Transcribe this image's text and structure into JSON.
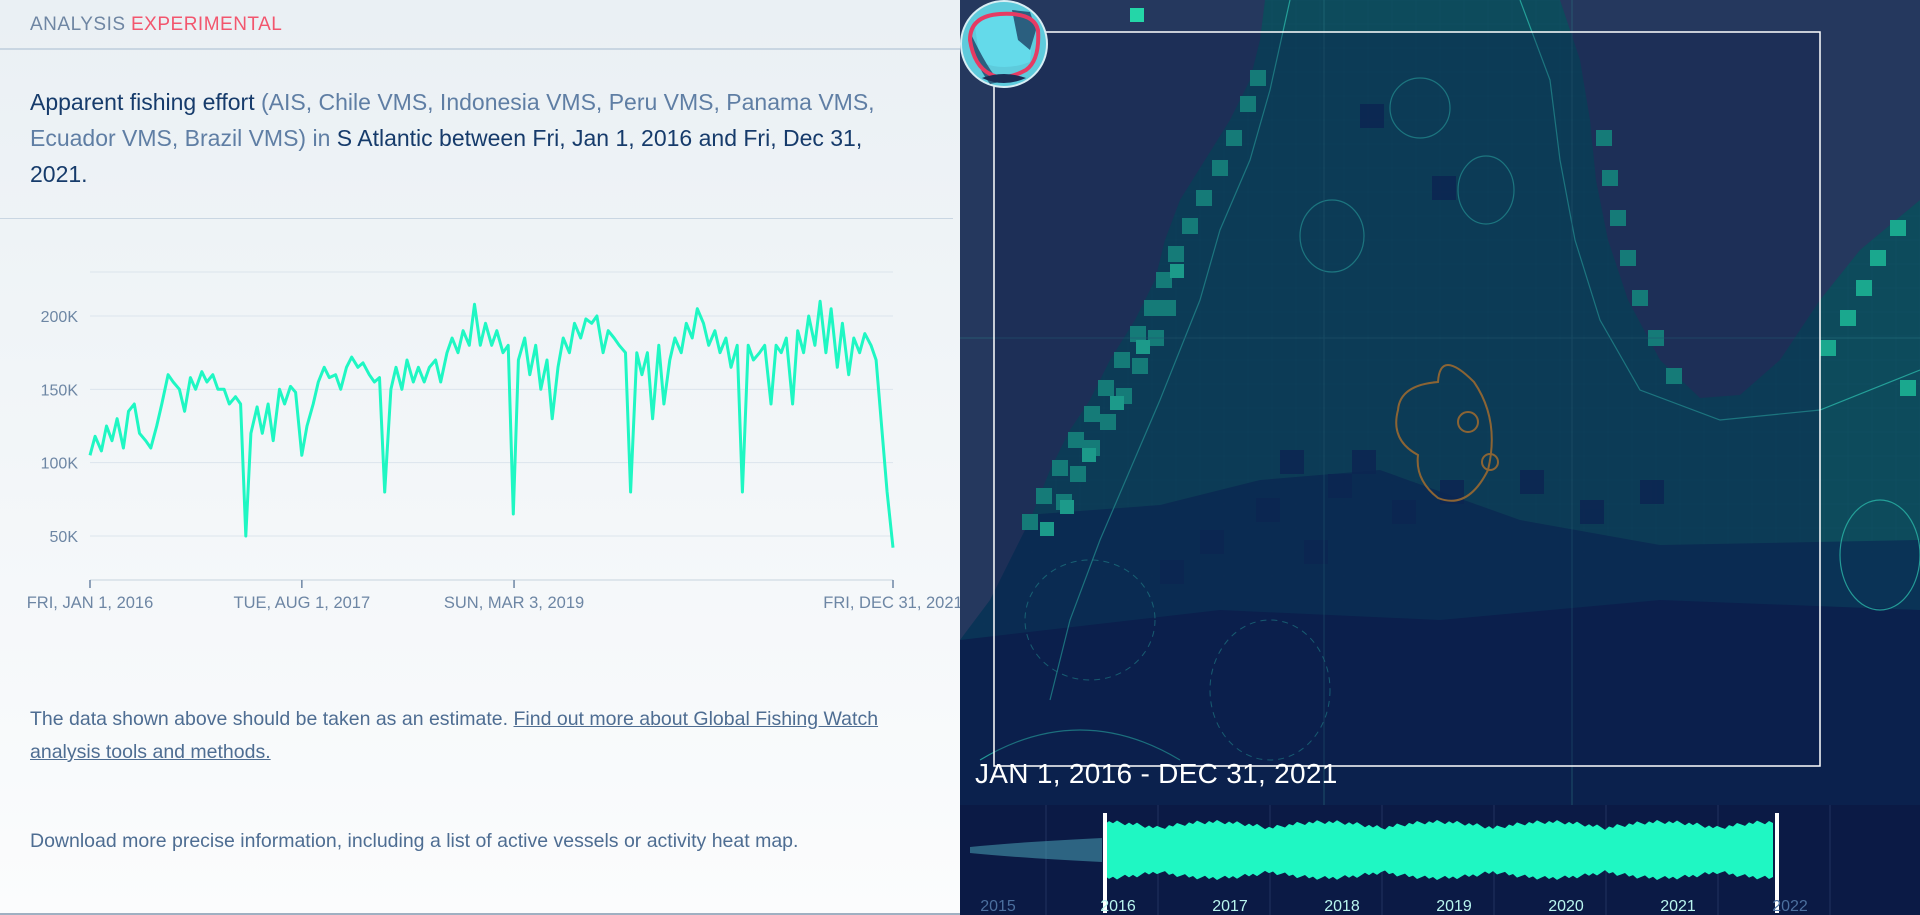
{
  "header": {
    "analysis_label": "ANALYSIS",
    "experimental_label": "EXPERIMENTAL"
  },
  "summary": {
    "metric": "Apparent fishing effort",
    "sources": "(AIS, Chile VMS, Indonesia VMS, Peru VMS, Panama VMS, Ecuador VMS, Brazil VMS)",
    "in_word": "in",
    "area_and_dates": "S Atlantic between Fri, Jan 1, 2016 and Fri, Dec 31, 2021."
  },
  "chart_data": {
    "type": "line",
    "title": "",
    "xlabel": "",
    "ylabel": "",
    "x_tick_labels": [
      "FRI, JAN 1, 2016",
      "TUE, AUG 1, 2017",
      "SUN, MAR 3, 2019",
      "FRI, DEC 31, 2021"
    ],
    "y_tick_labels": [
      "50K",
      "100K",
      "150K",
      "200K"
    ],
    "ylim": [
      20000,
      230000
    ],
    "x_range": [
      "2016-01-01",
      "2021-12-31"
    ],
    "grid": true,
    "series": [
      {
        "name": "",
        "color": "#1ff7c3",
        "points": [
          [
            "2016-01-01",
            105000
          ],
          [
            "2016-01-15",
            118000
          ],
          [
            "2016-02-01",
            108000
          ],
          [
            "2016-02-15",
            125000
          ],
          [
            "2016-03-01",
            115000
          ],
          [
            "2016-03-15",
            130000
          ],
          [
            "2016-04-01",
            110000
          ],
          [
            "2016-04-15",
            135000
          ],
          [
            "2016-05-01",
            140000
          ],
          [
            "2016-05-15",
            120000
          ],
          [
            "2016-06-01",
            115000
          ],
          [
            "2016-06-15",
            110000
          ],
          [
            "2016-07-01",
            125000
          ],
          [
            "2016-07-15",
            140000
          ],
          [
            "2016-08-01",
            160000
          ],
          [
            "2016-08-15",
            155000
          ],
          [
            "2016-09-01",
            150000
          ],
          [
            "2016-09-15",
            135000
          ],
          [
            "2016-10-01",
            158000
          ],
          [
            "2016-10-15",
            150000
          ],
          [
            "2016-11-01",
            162000
          ],
          [
            "2016-11-15",
            155000
          ],
          [
            "2016-12-01",
            160000
          ],
          [
            "2016-12-15",
            150000
          ],
          [
            "2017-01-01",
            150000
          ],
          [
            "2017-01-15",
            140000
          ],
          [
            "2017-02-01",
            145000
          ],
          [
            "2017-02-15",
            140000
          ],
          [
            "2017-03-01",
            50000
          ],
          [
            "2017-03-15",
            120000
          ],
          [
            "2017-04-01",
            138000
          ],
          [
            "2017-04-15",
            120000
          ],
          [
            "2017-05-01",
            140000
          ],
          [
            "2017-05-15",
            115000
          ],
          [
            "2017-06-01",
            150000
          ],
          [
            "2017-06-15",
            140000
          ],
          [
            "2017-07-01",
            152000
          ],
          [
            "2017-07-15",
            148000
          ],
          [
            "2017-08-01",
            105000
          ],
          [
            "2017-08-15",
            125000
          ],
          [
            "2017-09-01",
            140000
          ],
          [
            "2017-09-15",
            155000
          ],
          [
            "2017-10-01",
            165000
          ],
          [
            "2017-10-15",
            158000
          ],
          [
            "2017-11-01",
            160000
          ],
          [
            "2017-11-15",
            150000
          ],
          [
            "2017-12-01",
            165000
          ],
          [
            "2017-12-15",
            172000
          ],
          [
            "2018-01-01",
            165000
          ],
          [
            "2018-01-15",
            168000
          ],
          [
            "2018-02-01",
            160000
          ],
          [
            "2018-02-15",
            155000
          ],
          [
            "2018-03-01",
            158000
          ],
          [
            "2018-03-15",
            80000
          ],
          [
            "2018-04-01",
            150000
          ],
          [
            "2018-04-15",
            165000
          ],
          [
            "2018-05-01",
            150000
          ],
          [
            "2018-05-15",
            170000
          ],
          [
            "2018-06-01",
            155000
          ],
          [
            "2018-06-15",
            165000
          ],
          [
            "2018-07-01",
            155000
          ],
          [
            "2018-07-15",
            165000
          ],
          [
            "2018-08-01",
            170000
          ],
          [
            "2018-08-15",
            155000
          ],
          [
            "2018-09-01",
            175000
          ],
          [
            "2018-09-15",
            185000
          ],
          [
            "2018-10-01",
            175000
          ],
          [
            "2018-10-15",
            190000
          ],
          [
            "2018-11-01",
            180000
          ],
          [
            "2018-11-15",
            208000
          ],
          [
            "2018-12-01",
            180000
          ],
          [
            "2018-12-15",
            195000
          ],
          [
            "2019-01-01",
            180000
          ],
          [
            "2019-01-15",
            190000
          ],
          [
            "2019-02-01",
            175000
          ],
          [
            "2019-02-15",
            180000
          ],
          [
            "2019-03-01",
            65000
          ],
          [
            "2019-03-15",
            170000
          ],
          [
            "2019-04-01",
            185000
          ],
          [
            "2019-04-15",
            160000
          ],
          [
            "2019-05-01",
            180000
          ],
          [
            "2019-05-15",
            150000
          ],
          [
            "2019-06-01",
            170000
          ],
          [
            "2019-06-15",
            130000
          ],
          [
            "2019-07-01",
            165000
          ],
          [
            "2019-07-15",
            185000
          ],
          [
            "2019-08-01",
            175000
          ],
          [
            "2019-08-15",
            195000
          ],
          [
            "2019-09-01",
            185000
          ],
          [
            "2019-09-15",
            198000
          ],
          [
            "2019-10-01",
            195000
          ],
          [
            "2019-10-15",
            200000
          ],
          [
            "2019-11-01",
            175000
          ],
          [
            "2019-11-15",
            190000
          ],
          [
            "2019-12-01",
            185000
          ],
          [
            "2019-12-15",
            180000
          ],
          [
            "2020-01-01",
            175000
          ],
          [
            "2020-01-15",
            80000
          ],
          [
            "2020-02-01",
            175000
          ],
          [
            "2020-02-15",
            160000
          ],
          [
            "2020-03-01",
            175000
          ],
          [
            "2020-03-15",
            130000
          ],
          [
            "2020-04-01",
            180000
          ],
          [
            "2020-04-15",
            140000
          ],
          [
            "2020-05-01",
            170000
          ],
          [
            "2020-05-15",
            185000
          ],
          [
            "2020-06-01",
            175000
          ],
          [
            "2020-06-15",
            195000
          ],
          [
            "2020-07-01",
            185000
          ],
          [
            "2020-07-15",
            205000
          ],
          [
            "2020-08-01",
            195000
          ],
          [
            "2020-08-15",
            180000
          ],
          [
            "2020-09-01",
            190000
          ],
          [
            "2020-09-15",
            175000
          ],
          [
            "2020-10-01",
            185000
          ],
          [
            "2020-10-15",
            165000
          ],
          [
            "2020-11-01",
            180000
          ],
          [
            "2020-11-15",
            80000
          ],
          [
            "2020-12-01",
            180000
          ],
          [
            "2020-12-15",
            170000
          ],
          [
            "2021-01-01",
            175000
          ],
          [
            "2021-01-15",
            180000
          ],
          [
            "2021-02-01",
            140000
          ],
          [
            "2021-02-15",
            180000
          ],
          [
            "2021-03-01",
            175000
          ],
          [
            "2021-03-15",
            185000
          ],
          [
            "2021-04-01",
            140000
          ],
          [
            "2021-04-15",
            190000
          ],
          [
            "2021-05-01",
            175000
          ],
          [
            "2021-05-15",
            200000
          ],
          [
            "2021-06-01",
            180000
          ],
          [
            "2021-06-15",
            210000
          ],
          [
            "2021-07-01",
            175000
          ],
          [
            "2021-07-15",
            205000
          ],
          [
            "2021-08-01",
            165000
          ],
          [
            "2021-08-15",
            195000
          ],
          [
            "2021-09-01",
            160000
          ],
          [
            "2021-09-15",
            185000
          ],
          [
            "2021-10-01",
            175000
          ],
          [
            "2021-10-15",
            188000
          ],
          [
            "2021-11-01",
            180000
          ],
          [
            "2021-11-15",
            170000
          ],
          [
            "2021-12-15",
            80000
          ],
          [
            "2021-12-31",
            42000
          ]
        ]
      }
    ]
  },
  "note": {
    "text": "The data shown above should be taken as an estimate.",
    "link": "Find out more about Global Fishing Watch analysis tools and methods."
  },
  "download_text": "Download more precise information, including a list of active vessels or activity heat map.",
  "map": {
    "date_range": "JAN 1, 2016 - DEC 31, 2021",
    "info_icon_glyph": "i",
    "colors": {
      "ocean": "#0d4b5c",
      "land": "#25385e",
      "deep_ocean": "#0b1f4c",
      "activity": "#1ff7c3",
      "eez_line": "#2ab5a8",
      "mpa_line": "#c8862a",
      "selection": "#ffffff"
    }
  },
  "timebar": {
    "year_labels": [
      "2015",
      "2016",
      "2017",
      "2018",
      "2019",
      "2020",
      "2021",
      "2022"
    ],
    "active_years": [
      "2016",
      "2017",
      "2018",
      "2019",
      "2020",
      "2021"
    ],
    "colors": {
      "background": "#0b1a45",
      "activity": "#1ff7c3",
      "inactive_activity": "#4aa3b4",
      "inactive_label": "#4b6f9e",
      "active_label": "#b9f5ee"
    }
  }
}
